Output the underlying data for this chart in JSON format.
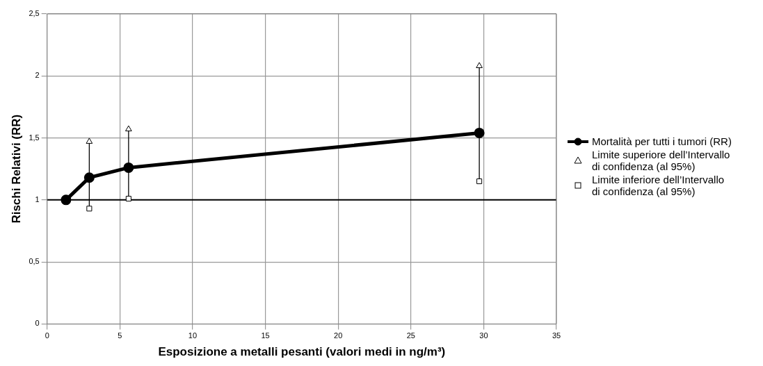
{
  "chart_data": {
    "type": "line",
    "xlabel": "Esposizione a metalli pesanti (valori medi in ng/m³)",
    "ylabel": "Rischi Relativi (RR)",
    "xlim": [
      0,
      35
    ],
    "xticks": [
      0,
      5,
      10,
      15,
      20,
      25,
      30,
      35
    ],
    "ylim": [
      0,
      2.5
    ],
    "yticks": [
      0,
      {
        "value": 0.5,
        "label": "0,5"
      },
      1,
      {
        "value": 1.5,
        "label": "1,5"
      },
      2,
      {
        "value": 2.5,
        "label": "2,5"
      }
    ],
    "grid": true,
    "legend": "right",
    "line_style": "solid",
    "ref_lines": [
      {
        "axis": "y",
        "value": 1,
        "color": "#000000"
      }
    ],
    "series": [
      {
        "name": "Mortalità per tutti i tumori (RR)",
        "color": "#000000",
        "marker": "circle",
        "x": [
          1.3,
          2.9,
          5.6,
          29.7
        ],
        "values": [
          1.0,
          1.18,
          1.26,
          1.54
        ],
        "errors": [
          null,
          [
            0.93,
            1.47
          ],
          [
            1.01,
            1.57
          ],
          [
            1.15,
            2.08
          ]
        ]
      },
      {
        "name": "Limite superiore dell’Intervallo di confidenza (al 95%)",
        "type": "scatter",
        "color": "#000000",
        "marker": "triangle",
        "x": [
          2.9,
          5.6,
          29.7
        ],
        "values": [
          1.47,
          1.57,
          2.08
        ]
      },
      {
        "name": "Limite inferiore dell’Intervallo di confidenza (al 95%)",
        "type": "scatter",
        "color": "#000000",
        "marker": "square",
        "x": [
          2.9,
          5.6,
          29.7
        ],
        "values": [
          0.93,
          1.01,
          1.15
        ]
      }
    ]
  }
}
